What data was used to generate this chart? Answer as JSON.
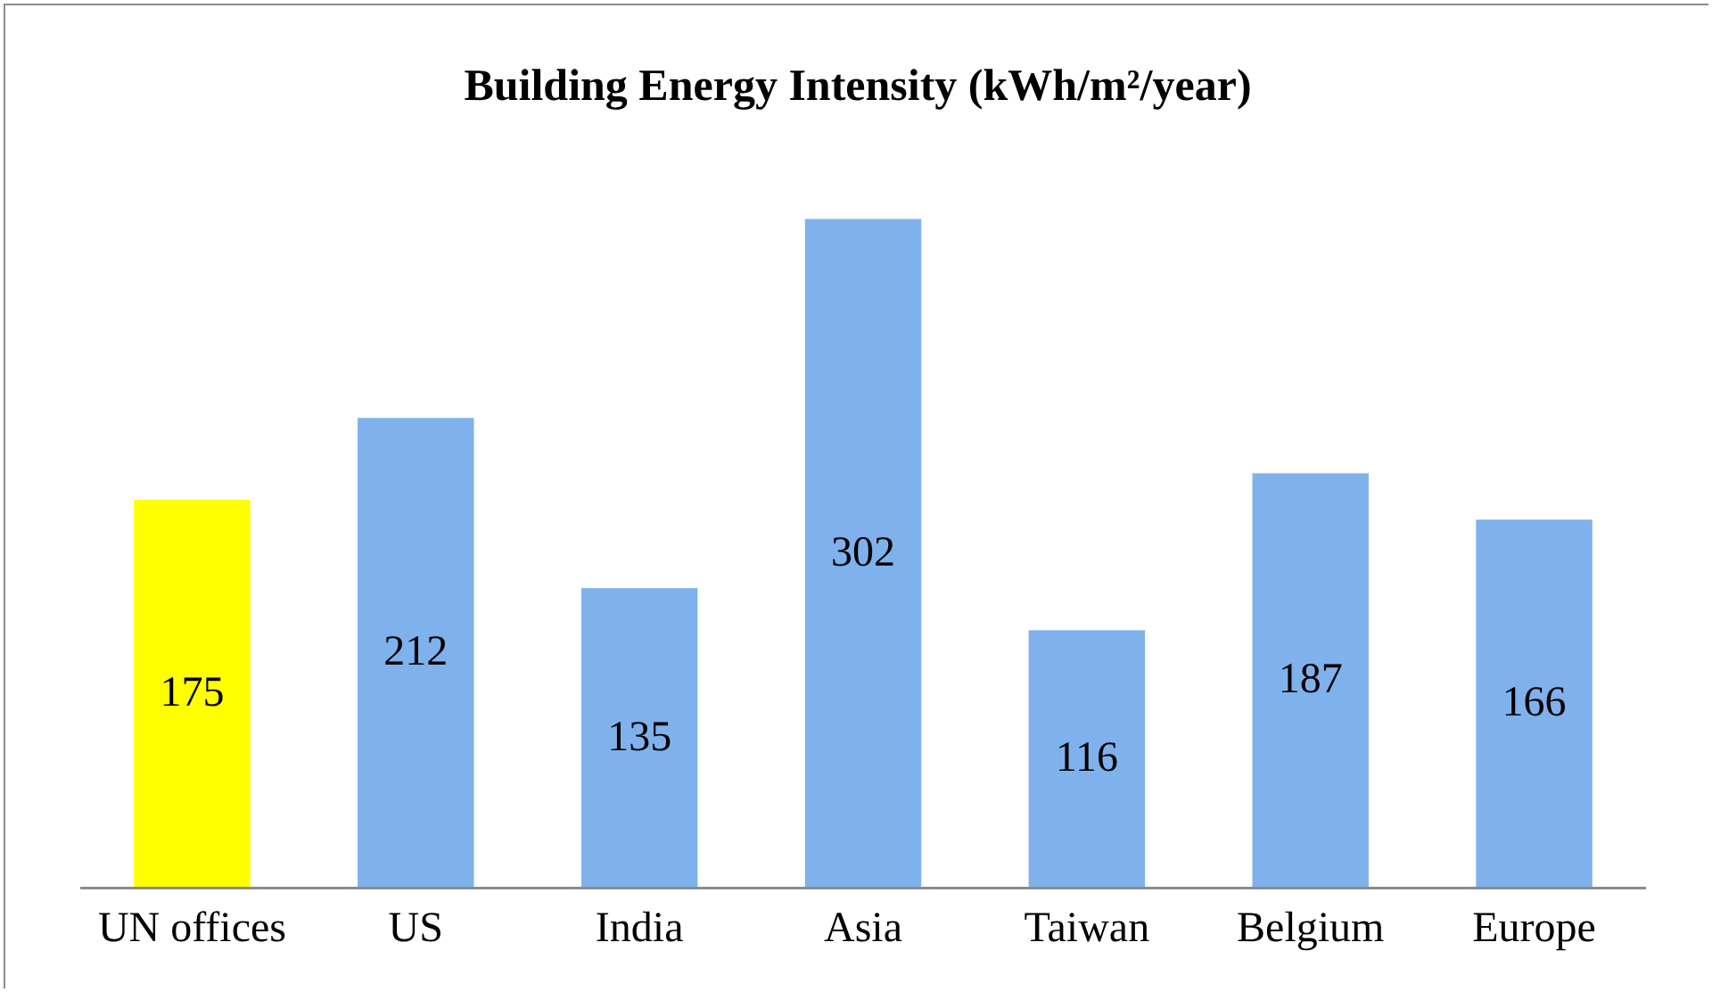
{
  "chart_data": {
    "type": "bar",
    "title": "Building Energy Intensity (kWh/m²/year)",
    "categories": [
      "UN offices",
      "US",
      "India",
      "Asia",
      "Taiwan",
      "Belgium",
      "Europe"
    ],
    "values": [
      175,
      212,
      135,
      302,
      116,
      187,
      166
    ],
    "colors": [
      "#ffff00",
      "#7fb1ec",
      "#7fb1ec",
      "#7fb1ec",
      "#7fb1ec",
      "#7fb1ec",
      "#7fb1ec"
    ],
    "data_labels": true,
    "legend": false
  }
}
